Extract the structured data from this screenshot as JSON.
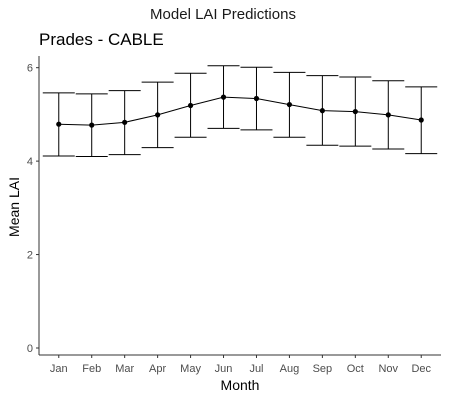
{
  "suptitle": "Model LAI Predictions",
  "subtitle": "Prades - CABLE",
  "chart_data": {
    "type": "line",
    "title": "Prades - CABLE",
    "xlabel": "Month",
    "ylabel": "Mean LAI",
    "ylim": [
      -0.15,
      6.25
    ],
    "yticks": [
      0,
      2,
      4,
      6
    ],
    "categories": [
      "Jan",
      "Feb",
      "Mar",
      "Apr",
      "May",
      "Jun",
      "Jul",
      "Aug",
      "Sep",
      "Oct",
      "Nov",
      "Dec"
    ],
    "series": [
      {
        "values": [
          4.79,
          4.77,
          4.83,
          4.99,
          5.19,
          5.37,
          5.34,
          5.21,
          5.08,
          5.06,
          4.99,
          4.88
        ],
        "error_low": [
          4.11,
          4.1,
          4.14,
          4.29,
          4.51,
          4.7,
          4.67,
          4.51,
          4.34,
          4.32,
          4.26,
          4.16
        ],
        "error_high": [
          5.46,
          5.44,
          5.51,
          5.69,
          5.88,
          6.04,
          6.01,
          5.9,
          5.83,
          5.8,
          5.72,
          5.59
        ]
      }
    ],
    "grid": false,
    "legend": "none",
    "colors": {
      "line": "#000000",
      "axis": "#333333",
      "tick_text": "#4d4d4d"
    }
  }
}
